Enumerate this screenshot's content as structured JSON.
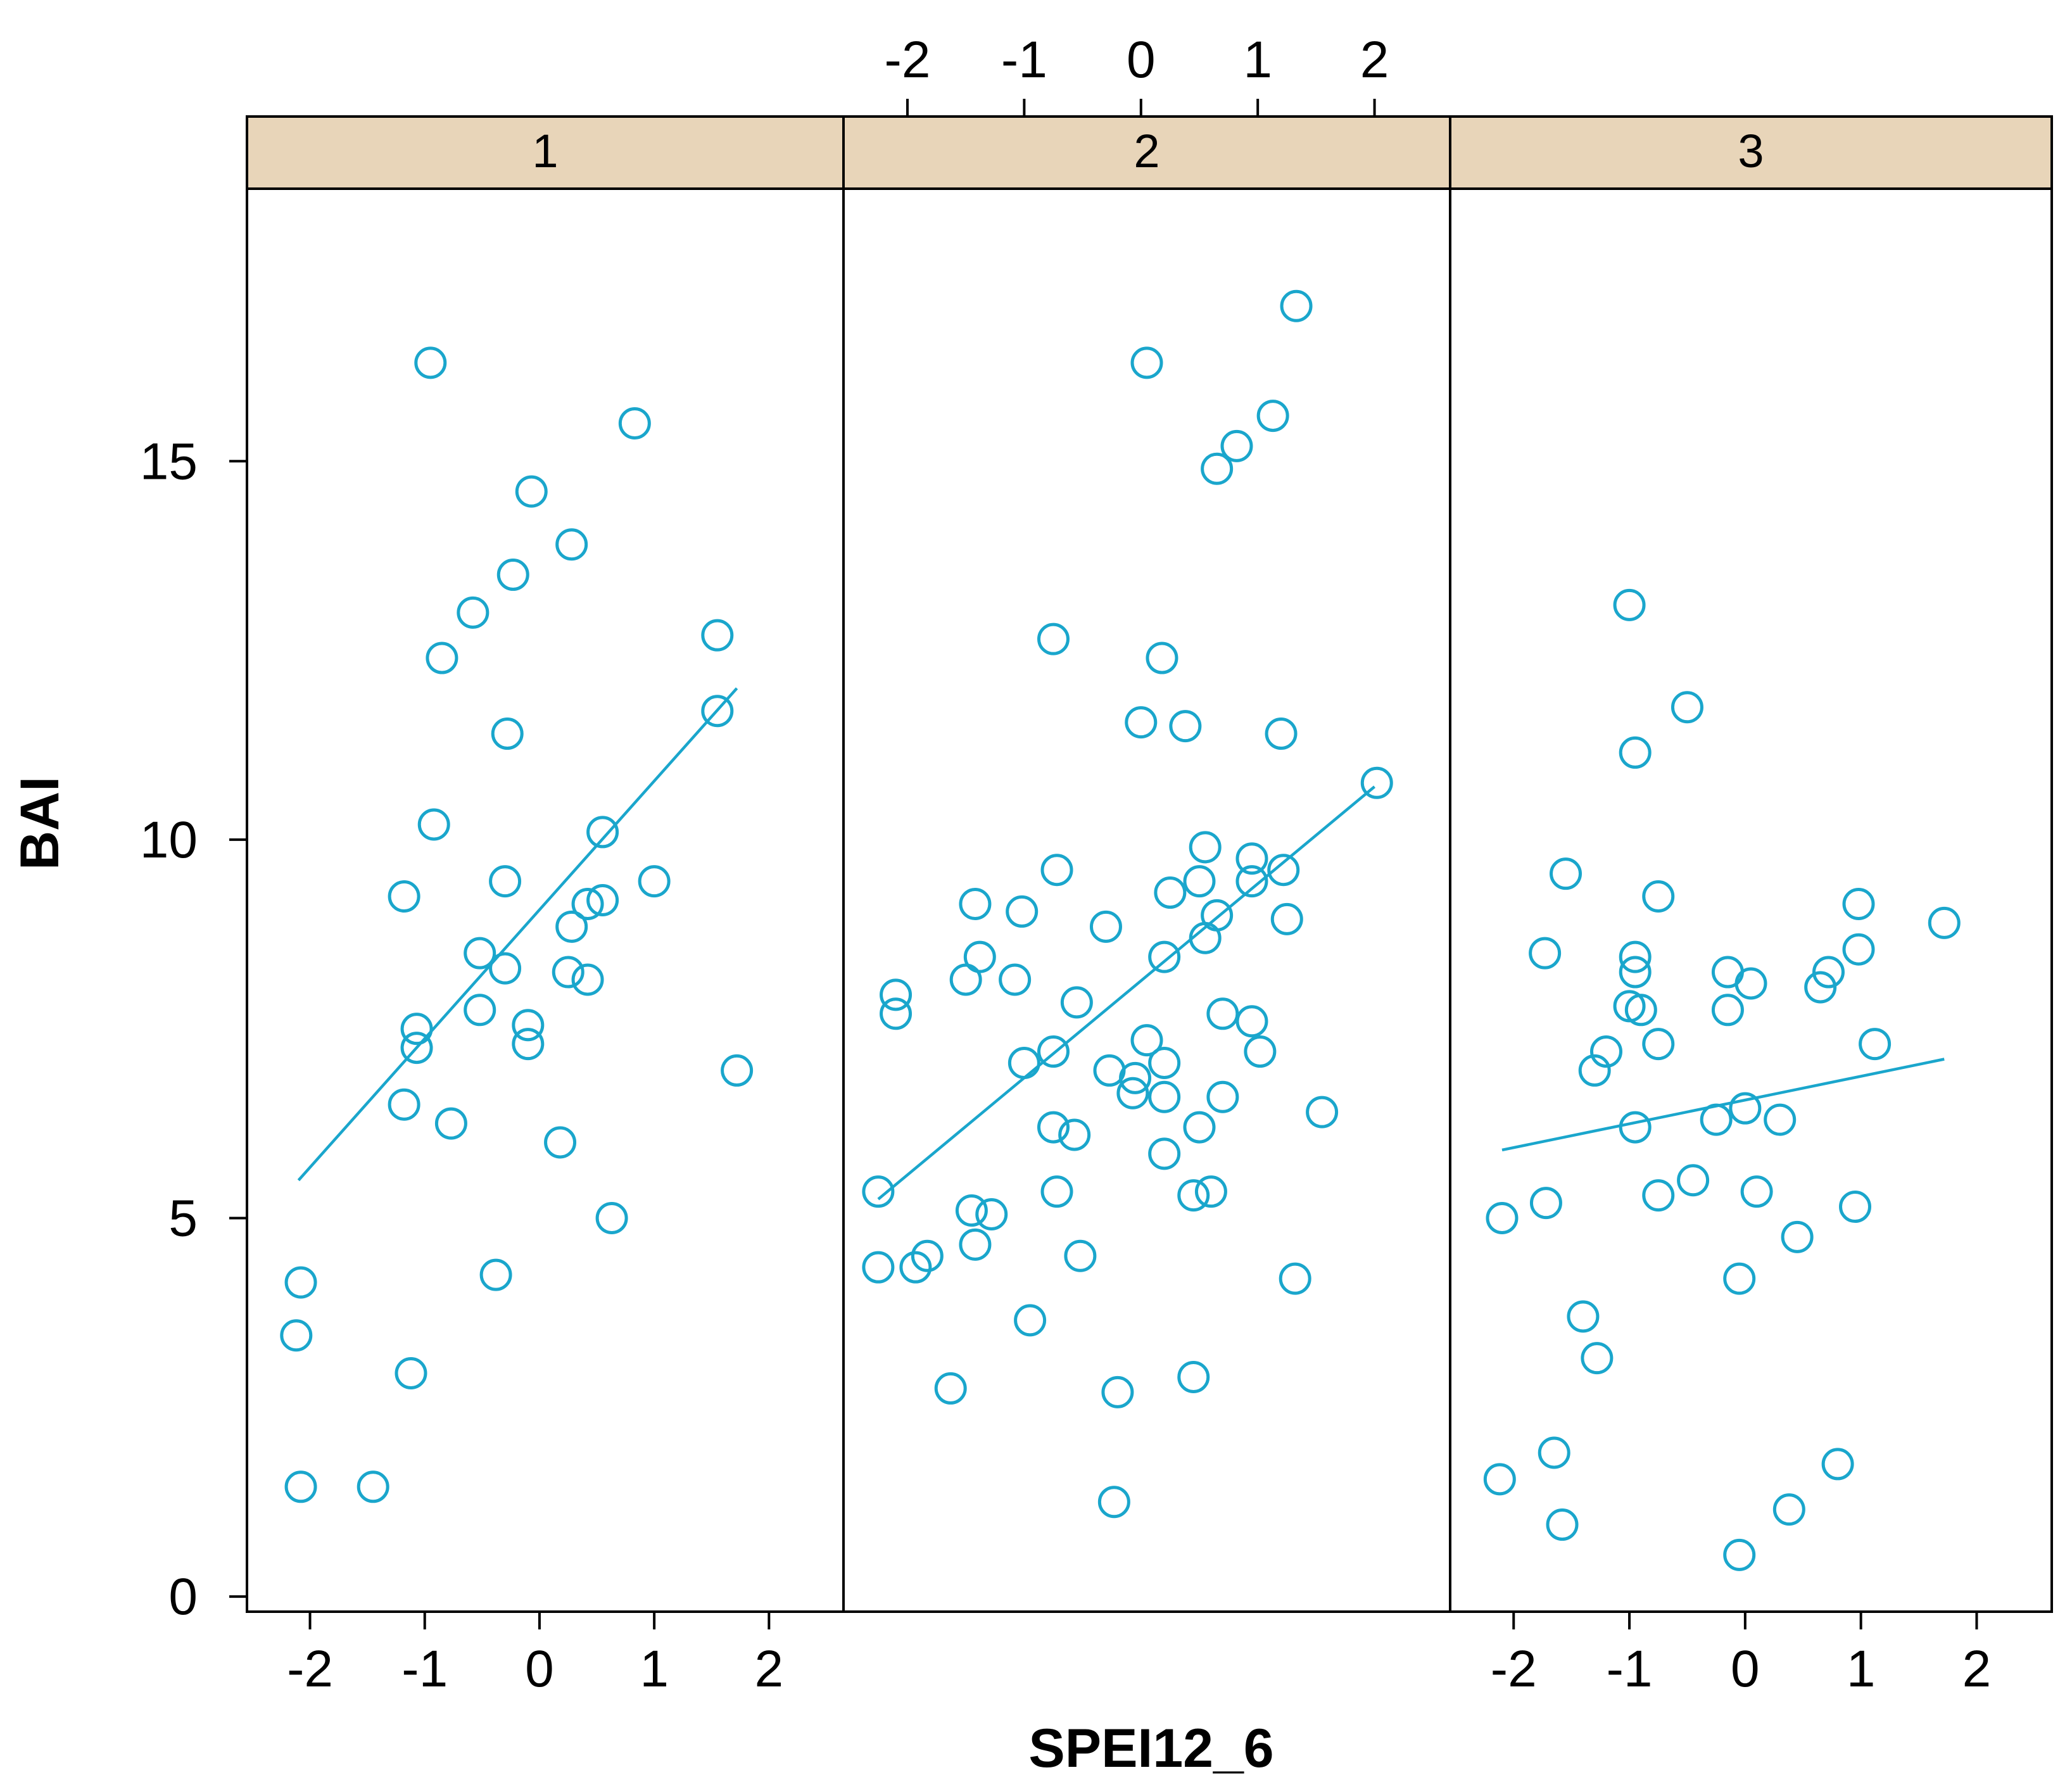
{
  "chart_data": {
    "type": "scatter",
    "layout": "trellis-three-panels",
    "xlabel": "SPEI12_6",
    "ylabel": "BAI",
    "xlim": [
      -2.45,
      2.55
    ],
    "ylim": [
      -0.2,
      18.6
    ],
    "x_ticks": [
      -2,
      -1,
      0,
      1,
      2
    ],
    "x_tick_labels": [
      "-2",
      "-1",
      "0",
      "1",
      "2"
    ],
    "y_ticks": [
      0,
      5,
      10,
      15
    ],
    "y_tick_labels": [
      "0",
      "5",
      "10",
      "15"
    ],
    "marker_color": "#1aa6cc",
    "strip_color": "#e8d5b9",
    "panels": [
      {
        "strip_label": "1",
        "x_axis_side": "bottom",
        "fit_line": {
          "x": [
            -2.1,
            1.72
          ],
          "y": [
            5.5,
            12.0
          ]
        },
        "points": [
          [
            -0.95,
            16.3
          ],
          [
            0.83,
            15.5
          ],
          [
            -0.07,
            14.6
          ],
          [
            0.28,
            13.9
          ],
          [
            -0.23,
            13.5
          ],
          [
            -0.58,
            13.0
          ],
          [
            -0.85,
            12.4
          ],
          [
            1.55,
            12.7
          ],
          [
            1.55,
            11.7
          ],
          [
            -0.28,
            11.4
          ],
          [
            -0.92,
            10.2
          ],
          [
            0.55,
            10.1
          ],
          [
            -0.3,
            9.45
          ],
          [
            1.0,
            9.45
          ],
          [
            -1.18,
            9.25
          ],
          [
            0.42,
            9.15
          ],
          [
            0.55,
            9.2
          ],
          [
            0.28,
            8.85
          ],
          [
            -0.52,
            8.5
          ],
          [
            -0.3,
            8.3
          ],
          [
            0.25,
            8.25
          ],
          [
            0.42,
            8.15
          ],
          [
            -0.52,
            7.75
          ],
          [
            -0.1,
            7.55
          ],
          [
            -1.07,
            7.5
          ],
          [
            -0.1,
            7.3
          ],
          [
            -1.07,
            7.25
          ],
          [
            1.72,
            6.95
          ],
          [
            -1.18,
            6.5
          ],
          [
            -0.77,
            6.25
          ],
          [
            0.18,
            6.0
          ],
          [
            0.63,
            5.0
          ],
          [
            -0.38,
            4.25
          ],
          [
            -2.08,
            4.15
          ],
          [
            -2.12,
            3.45
          ],
          [
            -1.12,
            2.95
          ],
          [
            -2.08,
            1.45
          ],
          [
            -1.45,
            1.45
          ]
        ]
      },
      {
        "strip_label": "2",
        "x_axis_side": "top",
        "fit_line": {
          "x": [
            -2.25,
            2.0
          ],
          "y": [
            5.25,
            10.7
          ]
        },
        "points": [
          [
            1.33,
            17.05
          ],
          [
            0.05,
            16.3
          ],
          [
            1.13,
            15.6
          ],
          [
            0.82,
            15.2
          ],
          [
            0.65,
            14.9
          ],
          [
            -0.75,
            12.65
          ],
          [
            0.18,
            12.4
          ],
          [
            0.0,
            11.55
          ],
          [
            0.38,
            11.5
          ],
          [
            1.2,
            11.4
          ],
          [
            2.02,
            10.75
          ],
          [
            0.55,
            9.9
          ],
          [
            0.95,
            9.75
          ],
          [
            1.22,
            9.6
          ],
          [
            -0.72,
            9.6
          ],
          [
            0.5,
            9.45
          ],
          [
            0.95,
            9.45
          ],
          [
            0.25,
            9.3
          ],
          [
            -1.42,
            9.15
          ],
          [
            -1.02,
            9.05
          ],
          [
            0.65,
            9.0
          ],
          [
            1.25,
            8.95
          ],
          [
            -0.3,
            8.85
          ],
          [
            0.55,
            8.7
          ],
          [
            0.2,
            8.45
          ],
          [
            -1.38,
            8.45
          ],
          [
            -1.5,
            8.15
          ],
          [
            -1.08,
            8.15
          ],
          [
            -2.1,
            7.95
          ],
          [
            -2.1,
            7.7
          ],
          [
            -0.55,
            7.85
          ],
          [
            0.7,
            7.7
          ],
          [
            0.95,
            7.6
          ],
          [
            0.05,
            7.35
          ],
          [
            -0.75,
            7.2
          ],
          [
            1.02,
            7.2
          ],
          [
            -1.0,
            7.05
          ],
          [
            0.2,
            7.05
          ],
          [
            -0.27,
            6.95
          ],
          [
            -0.05,
            6.85
          ],
          [
            -0.07,
            6.65
          ],
          [
            0.2,
            6.6
          ],
          [
            0.7,
            6.6
          ],
          [
            1.55,
            6.4
          ],
          [
            -0.75,
            6.2
          ],
          [
            0.5,
            6.2
          ],
          [
            -0.57,
            6.1
          ],
          [
            0.2,
            5.85
          ],
          [
            -0.72,
            5.35
          ],
          [
            0.6,
            5.35
          ],
          [
            0.45,
            5.3
          ],
          [
            -2.25,
            5.35
          ],
          [
            -1.45,
            5.1
          ],
          [
            -1.28,
            5.05
          ],
          [
            -1.42,
            4.65
          ],
          [
            -0.52,
            4.5
          ],
          [
            -1.83,
            4.5
          ],
          [
            -1.93,
            4.35
          ],
          [
            -2.25,
            4.35
          ],
          [
            1.32,
            4.2
          ],
          [
            -0.95,
            3.65
          ],
          [
            0.45,
            2.9
          ],
          [
            -1.63,
            2.75
          ],
          [
            -0.2,
            2.7
          ],
          [
            -0.23,
            1.25
          ]
        ]
      },
      {
        "strip_label": "3",
        "x_axis_side": "bottom",
        "fit_line": {
          "x": [
            -2.1,
            1.72
          ],
          "y": [
            5.9,
            7.1
          ]
        },
        "points": [
          [
            -1.0,
            13.1
          ],
          [
            -0.5,
            11.75
          ],
          [
            -0.95,
            11.15
          ],
          [
            -1.55,
            9.55
          ],
          [
            -0.75,
            9.25
          ],
          [
            0.98,
            9.15
          ],
          [
            1.72,
            8.9
          ],
          [
            -0.95,
            8.45
          ],
          [
            -1.73,
            8.5
          ],
          [
            0.98,
            8.55
          ],
          [
            -0.95,
            8.25
          ],
          [
            -0.15,
            8.25
          ],
          [
            0.72,
            8.25
          ],
          [
            0.05,
            8.1
          ],
          [
            0.65,
            8.05
          ],
          [
            -1.0,
            7.8
          ],
          [
            -0.9,
            7.75
          ],
          [
            -0.15,
            7.75
          ],
          [
            -0.75,
            7.3
          ],
          [
            1.12,
            7.3
          ],
          [
            -1.2,
            7.2
          ],
          [
            -1.3,
            6.95
          ],
          [
            0.0,
            6.45
          ],
          [
            -0.25,
            6.3
          ],
          [
            0.3,
            6.3
          ],
          [
            -0.95,
            6.2
          ],
          [
            -0.45,
            5.5
          ],
          [
            0.1,
            5.35
          ],
          [
            -0.75,
            5.3
          ],
          [
            -1.72,
            5.2
          ],
          [
            0.95,
            5.15
          ],
          [
            -2.1,
            5.0
          ],
          [
            0.45,
            4.75
          ],
          [
            -0.05,
            4.2
          ],
          [
            -1.4,
            3.7
          ],
          [
            -1.28,
            3.15
          ],
          [
            -2.12,
            1.55
          ],
          [
            -1.65,
            1.9
          ],
          [
            0.8,
            1.75
          ],
          [
            -1.58,
            0.95
          ],
          [
            0.38,
            1.15
          ],
          [
            -0.05,
            0.55
          ]
        ]
      }
    ]
  }
}
